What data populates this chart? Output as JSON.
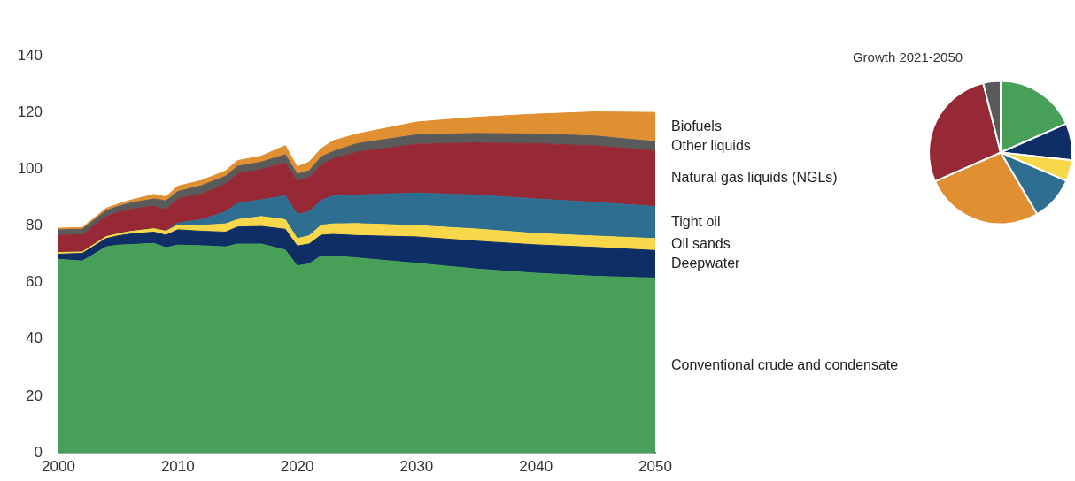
{
  "chart_data": [
    {
      "type": "area",
      "stacked": true,
      "x": [
        2000,
        2002,
        2004,
        2005,
        2006,
        2008,
        2009,
        2010,
        2012,
        2014,
        2015,
        2017,
        2019,
        2020,
        2021,
        2022,
        2023,
        2025,
        2030,
        2035,
        2040,
        2045,
        2050
      ],
      "xlim": [
        2000,
        2050
      ],
      "xticks": [
        2000,
        2010,
        2020,
        2030,
        2040,
        2050
      ],
      "ylim": [
        0,
        140
      ],
      "yticks": [
        0,
        20,
        40,
        60,
        80,
        100,
        120,
        140
      ],
      "series": [
        {
          "name": "Conventional crude and condensate",
          "color": "#48a058",
          "values": [
            68.2,
            67.6,
            72.6,
            73.2,
            73.4,
            73.8,
            72.3,
            73.2,
            73.0,
            72.6,
            73.6,
            73.6,
            71.5,
            65.9,
            66.6,
            69.4,
            69.4,
            68.7,
            66.8,
            64.8,
            63.3,
            62.2,
            61.6
          ]
        },
        {
          "name": "Deepwater",
          "color": "#0f2e66",
          "values": [
            1.8,
            2.7,
            2.9,
            3.3,
            3.7,
            4.0,
            4.4,
            5.4,
            5.1,
            5.2,
            6.0,
            6.2,
            7.3,
            7.0,
            7.0,
            7.3,
            7.6,
            7.9,
            9.3,
            9.8,
            10.0,
            10.2,
            9.7
          ]
        },
        {
          "name": "Oil sands",
          "color": "#f7d84a",
          "values": [
            0.6,
            0.5,
            0.7,
            0.7,
            0.9,
            1.2,
            1.4,
            1.6,
            2.1,
            2.9,
            2.6,
            3.5,
            3.4,
            2.6,
            2.9,
            3.5,
            3.7,
            4.2,
            4.0,
            4.3,
            4.0,
            4.0,
            4.2
          ]
        },
        {
          "name": "Tight oil",
          "color": "#2e6e91",
          "values": [
            0,
            0,
            0,
            0,
            0,
            0,
            0,
            0.8,
            2.0,
            4.3,
            5.8,
            5.9,
            8.4,
            8.6,
            8.5,
            8.8,
            9.9,
            10.1,
            11.5,
            12.0,
            12.2,
            11.9,
            11.3
          ]
        },
        {
          "name": "Natural gas liquids (NGLs)",
          "color": "#962935",
          "values": [
            6.1,
            6.1,
            7.1,
            7.6,
            7.9,
            7.9,
            7.6,
            8.5,
            9.1,
            9.7,
            10.4,
            10.7,
            11.6,
            11.7,
            12.1,
            12.5,
            13.0,
            15.1,
            17.2,
            18.4,
            19.5,
            19.9,
            19.7
          ]
        },
        {
          "name": "Other liquids",
          "color": "#5a5a5a",
          "values": [
            1.9,
            1.9,
            2.1,
            2.1,
            2.1,
            2.6,
            3.1,
            2.6,
            2.9,
            2.8,
            2.6,
            2.6,
            2.9,
            2.4,
            2.3,
            2.8,
            2.6,
            3.0,
            3.3,
            3.3,
            3.4,
            3.5,
            3.2
          ]
        },
        {
          "name": "Biofuels",
          "color": "#e08f31",
          "values": [
            0.6,
            0.6,
            0.8,
            0.8,
            1.0,
            1.6,
            1.4,
            1.9,
            1.8,
            1.9,
            2.0,
            2.1,
            3.2,
            2.6,
            3.1,
            2.9,
            3.8,
            3.4,
            4.5,
            5.7,
            7.0,
            8.5,
            10.3
          ]
        }
      ]
    },
    {
      "type": "pie",
      "title": "Growth 2021-2050",
      "categories": [
        null,
        null,
        null,
        null,
        null,
        null,
        null
      ],
      "values": [
        18.4,
        8.3,
        4.8,
        10.0,
        26.9,
        27.7,
        3.9
      ],
      "colors": [
        "#48a058",
        "#0f2e66",
        "#f7d84a",
        "#2e6e91",
        "#e08f31",
        "#962935",
        "#5a5a5a"
      ]
    }
  ]
}
